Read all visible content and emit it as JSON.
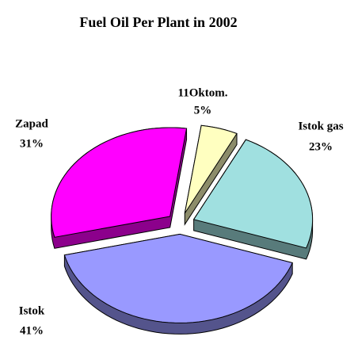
{
  "chart_data": {
    "type": "pie",
    "title": "Fuel Oil Per Plant in 2002",
    "categories": [
      "11Oktom.",
      "Istok gas",
      "Istok",
      "Zapad"
    ],
    "values": [
      5,
      23,
      41,
      31
    ],
    "value_labels": [
      "5%",
      "23%",
      "41%",
      "31%"
    ],
    "colors": [
      "#ffffc0",
      "#a0e0e0",
      "#9999ff",
      "#ff00ff"
    ]
  }
}
